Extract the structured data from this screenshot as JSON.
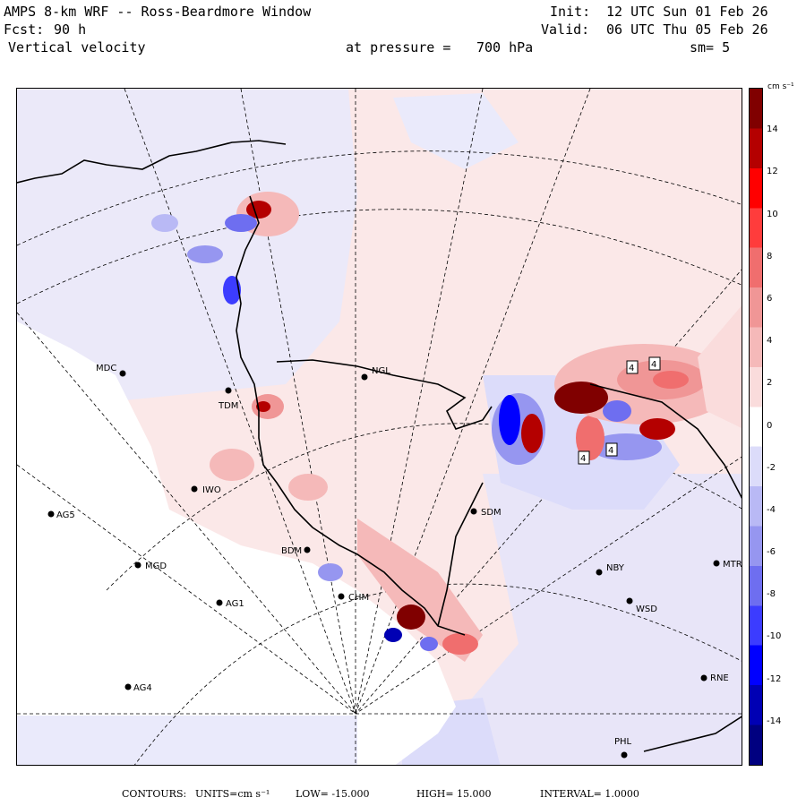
{
  "header": {
    "title": "AMPS 8-km WRF -- Ross-Beardmore Window",
    "forecast_label": "Fcst:",
    "forecast_hours": "90 h",
    "field": "Vertical velocity",
    "pressure_label": "at pressure =",
    "pressure_value": "700 hPa",
    "init_label": "Init:",
    "init_time": "12 UTC Sun 01 Feb 26",
    "valid_label": "Valid:",
    "valid_time": "06 UTC Thu 05 Feb 26",
    "smoothing": "sm= 5"
  },
  "colorbar": {
    "unit": "cm s⁻¹",
    "ticks": [
      "14",
      "12",
      "10",
      "8",
      "6",
      "4",
      "2",
      "0",
      "-2",
      "-4",
      "-6",
      "-8",
      "-10",
      "-12",
      "-14"
    ],
    "tick_values": [
      14,
      12,
      10,
      8,
      6,
      4,
      2,
      0,
      -2,
      -4,
      -6,
      -8,
      -10,
      -12,
      -14
    ],
    "min": -16,
    "max": 16,
    "colors": [
      "#000080",
      "#0000b4",
      "#0000ff",
      "#3c3cff",
      "#6e6ef0",
      "#9696f0",
      "#b9b9f5",
      "#dcdcfa",
      "#ffffff",
      "#fadcdc",
      "#f5b9b9",
      "#f09696",
      "#f06e6e",
      "#ff3c3c",
      "#ff0000",
      "#b40000",
      "#800000"
    ]
  },
  "stations": [
    {
      "code": "MDC"
    },
    {
      "code": "NGL"
    },
    {
      "code": "TDM"
    },
    {
      "code": "IWO"
    },
    {
      "code": "AG5"
    },
    {
      "code": "SDM"
    },
    {
      "code": "BDM"
    },
    {
      "code": "MGD"
    },
    {
      "code": "NBY"
    },
    {
      "code": "MTR"
    },
    {
      "code": "AG1"
    },
    {
      "code": "CHM"
    },
    {
      "code": "WSD"
    },
    {
      "code": "AG4"
    },
    {
      "code": "RNE"
    },
    {
      "code": "PHL"
    }
  ],
  "labels": {
    "contour_values": [
      "4",
      "4",
      "4",
      "4"
    ]
  },
  "footer": {
    "contours_label": "CONTOURS:",
    "units_label": "UNITS=cm s⁻¹",
    "low": "LOW= -15.000",
    "high": "HIGH= 15.000",
    "interval": "INTERVAL= 1.0000"
  }
}
